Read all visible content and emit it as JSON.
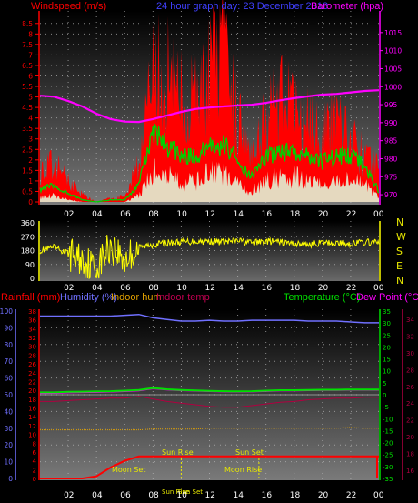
{
  "colors": {
    "wind_axis": "#ff0000",
    "baro_axis": "#ff00ff",
    "title": "#4040ff",
    "gust": "#ff0000",
    "wind_avg": "#00d000",
    "wind_min": "#e0ffe0",
    "baro_line": "#ff00ff",
    "dir_line": "#ffff00",
    "rain": "#ff0000",
    "humidity": "#7070ff",
    "indoor_hum": "#e0a000",
    "indoor_temp": "#b00040",
    "temperature": "#00e000",
    "dewpoint": "#ff00ff",
    "axis_white": "#ffffff",
    "label_yellow": "#e8e800"
  },
  "panel1": {
    "title_left": "Windspeed (m/s)",
    "title_center": "24 hour graph day: 23 December 2018",
    "title_right": "Barometer (hpa)",
    "left_ticks": [
      "8.5",
      "8",
      "7.5",
      "7",
      "6.5",
      "6",
      "5.5",
      "5",
      "4.5",
      "4",
      "3.5",
      "3",
      "2.5",
      "2",
      "1.5",
      "1",
      "0.5",
      "0"
    ],
    "right_ticks": [
      "1015",
      "1010",
      "1005",
      "1000",
      "995",
      "990",
      "985",
      "980",
      "975",
      "970"
    ],
    "x_ticks": [
      "02",
      "04",
      "06",
      "08",
      "10",
      "12",
      "14",
      "16",
      "18",
      "20",
      "22",
      "00"
    ]
  },
  "panel2": {
    "left_ticks": [
      "360",
      "270",
      "180",
      "90",
      "0"
    ],
    "compass": [
      "N",
      "W",
      "S",
      "E",
      "N"
    ],
    "x_ticks": [
      "02",
      "04",
      "06",
      "08",
      "10",
      "12",
      "14",
      "16",
      "18",
      "20",
      "22",
      "00"
    ]
  },
  "panel3": {
    "title_rain": "Rainfall (mm)",
    "title_hum": "Humidity (%)",
    "title_ihum": "Indoor hum",
    "title_itemp": "Indoor temp",
    "title_temp": "Temperature (°C)",
    "title_dew": "Dew Point (°C)",
    "far_left_ticks": [
      "100",
      "90",
      "80",
      "70",
      "60",
      "50",
      "40",
      "30",
      "20",
      "10",
      "0"
    ],
    "inner_left_ticks": [
      "38",
      "36",
      "34",
      "32",
      "30",
      "28",
      "26",
      "24",
      "22",
      "20",
      "18",
      "16",
      "14",
      "12",
      "10",
      "8",
      "6",
      "4",
      "2",
      "0"
    ],
    "inner_right_ticks": [
      "35",
      "30",
      "25",
      "20",
      "15",
      "10",
      "5",
      "0",
      "-5",
      "-10",
      "-15",
      "-20",
      "-25",
      "-30",
      "-35"
    ],
    "far_right_ticks": [
      "34",
      "32",
      "30",
      "28",
      "26",
      "24",
      "22",
      "20",
      "18",
      "16"
    ],
    "x_ticks": [
      "02",
      "04",
      "06",
      "08",
      "10",
      "12",
      "14",
      "16",
      "18",
      "20",
      "22",
      "00"
    ],
    "annotations": [
      "Moon Set",
      "Sun Rise",
      "Sun Set",
      "Moon Rise",
      "Sun Rise",
      "Sun Set"
    ]
  },
  "chart_data": [
    {
      "type": "line",
      "title": "24 hour graph day: 23 December 2018",
      "ylabel": "Windspeed (m/s)",
      "y2label": "Barometer (hpa)",
      "ylim": [
        0,
        8.75
      ],
      "y2lim": [
        968,
        1019
      ],
      "x_hours": [
        0,
        1,
        2,
        3,
        4,
        5,
        6,
        7,
        8,
        9,
        10,
        11,
        12,
        13,
        14,
        15,
        16,
        17,
        18,
        19,
        20,
        21,
        22,
        23,
        24
      ],
      "series": [
        {
          "name": "gust",
          "values": [
            1.6,
            2.0,
            1.2,
            0.4,
            0.0,
            0.2,
            0.3,
            2.2,
            6.5,
            7.0,
            5.5,
            5.3,
            7.0,
            7.5,
            4.5,
            3.0,
            4.5,
            5.5,
            4.8,
            4.0,
            4.0,
            5.0,
            3.5,
            2.2,
            1.8
          ]
        },
        {
          "name": "average",
          "values": [
            0.6,
            0.8,
            0.4,
            0.1,
            0.0,
            0.1,
            0.1,
            0.8,
            3.5,
            2.6,
            2.3,
            2.1,
            2.6,
            2.8,
            1.9,
            1.2,
            2.2,
            2.4,
            2.4,
            2.3,
            1.9,
            2.2,
            2.2,
            1.7,
            0.5
          ]
        },
        {
          "name": "min",
          "values": [
            0.2,
            0.3,
            0.1,
            0.0,
            0.0,
            0.0,
            0.0,
            0.3,
            1.5,
            1.2,
            1.0,
            0.9,
            1.4,
            1.3,
            0.8,
            0.5,
            1.0,
            1.2,
            1.2,
            1.0,
            0.8,
            1.0,
            1.0,
            0.8,
            0.2
          ]
        },
        {
          "name": "barometer",
          "values": [
            997.5,
            997.2,
            996.0,
            994.5,
            992.5,
            991.0,
            990.3,
            990.2,
            991.0,
            992.0,
            993.0,
            993.8,
            994.2,
            994.5,
            994.8,
            995.0,
            995.5,
            996.2,
            996.8,
            997.3,
            997.8,
            998.0,
            998.4,
            998.8,
            999.0
          ]
        }
      ]
    },
    {
      "type": "line",
      "title": "",
      "ylabel": "",
      "ylim": [
        0,
        360
      ],
      "x_hours": [
        0,
        1,
        2,
        3,
        4,
        5,
        6,
        7,
        8,
        9,
        10,
        11,
        12,
        13,
        14,
        15,
        16,
        17,
        18,
        19,
        20,
        21,
        22,
        23,
        24
      ],
      "series": [
        {
          "name": "direction",
          "values": [
            180,
            200,
            160,
            120,
            60,
            220,
            120,
            200,
            220,
            230,
            235,
            240,
            240,
            235,
            245,
            230,
            240,
            235,
            225,
            220,
            230,
            230,
            225,
            235,
            230
          ]
        }
      ]
    },
    {
      "type": "line",
      "title": "",
      "x_hours": [
        0,
        1,
        2,
        3,
        4,
        5,
        6,
        7,
        8,
        9,
        10,
        11,
        12,
        13,
        14,
        15,
        16,
        17,
        18,
        19,
        20,
        21,
        22,
        23,
        24
      ],
      "series": [
        {
          "name": "Rainfall (mm)",
          "axis": "rain",
          "values": [
            0,
            0,
            0,
            0,
            0.5,
            2.5,
            4.0,
            5.0,
            5.0,
            5.0,
            5.0,
            5.0,
            5.0,
            5.0,
            5.0,
            5.0,
            5.0,
            5.0,
            5.0,
            5.0,
            5.0,
            5.0,
            5.0,
            5.0,
            5.0
          ]
        },
        {
          "name": "Humidity (%)",
          "axis": "hum",
          "values": [
            97,
            97,
            97,
            97,
            97,
            97,
            97.5,
            98,
            96,
            95,
            94,
            94,
            94.5,
            94,
            94,
            94.5,
            94.5,
            94.5,
            94.5,
            94,
            94,
            94,
            93.5,
            93,
            93
          ]
        },
        {
          "name": "Indoor hum",
          "axis": "hum",
          "values": [
            29,
            29,
            29,
            29,
            29,
            29,
            29,
            29,
            29.5,
            29.5,
            29.5,
            29.5,
            30,
            30,
            30,
            30,
            30,
            30,
            30,
            30,
            30,
            30,
            30.5,
            30,
            30
          ]
        },
        {
          "name": "Indoor temp",
          "axis": "itemp",
          "values": [
            24.2,
            24.2,
            24.3,
            24.4,
            24.5,
            24.6,
            24.6,
            24.8,
            24.5,
            24.2,
            24.0,
            23.8,
            23.6,
            23.5,
            23.5,
            23.7,
            23.9,
            24.1,
            24.2,
            24.4,
            24.5,
            24.6,
            24.6,
            24.7,
            24.7
          ]
        },
        {
          "name": "Temperature (°C)",
          "axis": "temp",
          "values": [
            1.0,
            1.0,
            1.2,
            1.3,
            1.4,
            1.5,
            1.7,
            2.0,
            2.8,
            2.3,
            2.0,
            1.8,
            1.6,
            1.5,
            1.4,
            1.5,
            1.7,
            1.9,
            1.9,
            2.0,
            2.1,
            2.1,
            2.2,
            2.2,
            2.2
          ]
        },
        {
          "name": "Dew Point (°C)",
          "axis": "temp",
          "values": [
            0.6,
            0.7,
            0.9,
            1.0,
            1.1,
            1.2,
            1.4,
            1.7,
            2.6,
            2.1,
            1.8,
            1.6,
            1.4,
            1.3,
            1.2,
            1.3,
            1.5,
            1.7,
            1.7,
            1.8,
            1.9,
            1.9,
            2.0,
            2.0,
            2.0
          ]
        }
      ]
    }
  ]
}
